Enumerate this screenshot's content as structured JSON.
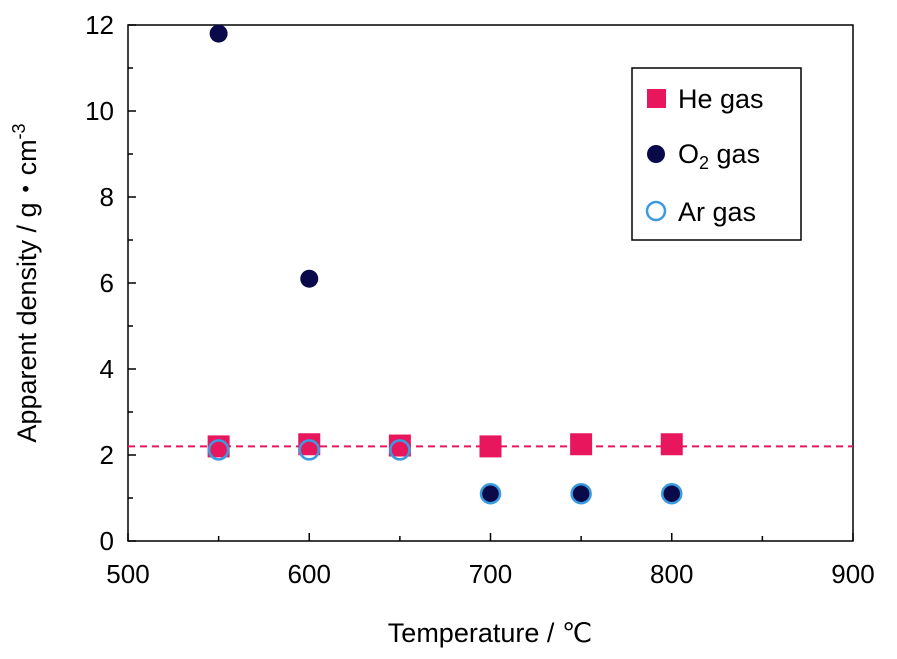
{
  "chart_data": {
    "type": "scatter",
    "xlabel": "Temperature / ℃",
    "ylabel": {
      "main": "Apparent density / g・cm",
      "sup": "-3"
    },
    "xlim": [
      500,
      900
    ],
    "ylim": [
      0,
      12
    ],
    "xticks": [
      500,
      600,
      700,
      800,
      900
    ],
    "yticks": [
      0,
      2,
      4,
      6,
      8,
      10,
      12
    ],
    "legend_position": "top-right",
    "reference_line": {
      "y": 2.2,
      "color": "#e8175d",
      "style": "dashed"
    },
    "series": [
      {
        "name": "He gas",
        "marker": "square",
        "fill": "#e8175d",
        "stroke": "#e8175d",
        "points": [
          {
            "x": 550,
            "y": 2.2
          },
          {
            "x": 600,
            "y": 2.25
          },
          {
            "x": 650,
            "y": 2.22
          },
          {
            "x": 700,
            "y": 2.2
          },
          {
            "x": 750,
            "y": 2.25
          },
          {
            "x": 800,
            "y": 2.25
          }
        ]
      },
      {
        "name": "O",
        "name_sub": "2",
        "name_suffix": " gas",
        "marker": "circle",
        "fill": "#0a0a4a",
        "stroke": "#0a0a4a",
        "points": [
          {
            "x": 550,
            "y": 11.8
          },
          {
            "x": 600,
            "y": 6.1
          },
          {
            "x": 700,
            "y": 1.1
          },
          {
            "x": 750,
            "y": 1.1
          },
          {
            "x": 800,
            "y": 1.1
          }
        ]
      },
      {
        "name": "Ar gas",
        "marker": "circle-open",
        "fill": "none",
        "stroke": "#3b9be0",
        "points": [
          {
            "x": 550,
            "y": 2.12
          },
          {
            "x": 600,
            "y": 2.12
          },
          {
            "x": 650,
            "y": 2.12
          },
          {
            "x": 700,
            "y": 1.1
          },
          {
            "x": 750,
            "y": 1.1
          },
          {
            "x": 800,
            "y": 1.1
          }
        ]
      }
    ]
  }
}
